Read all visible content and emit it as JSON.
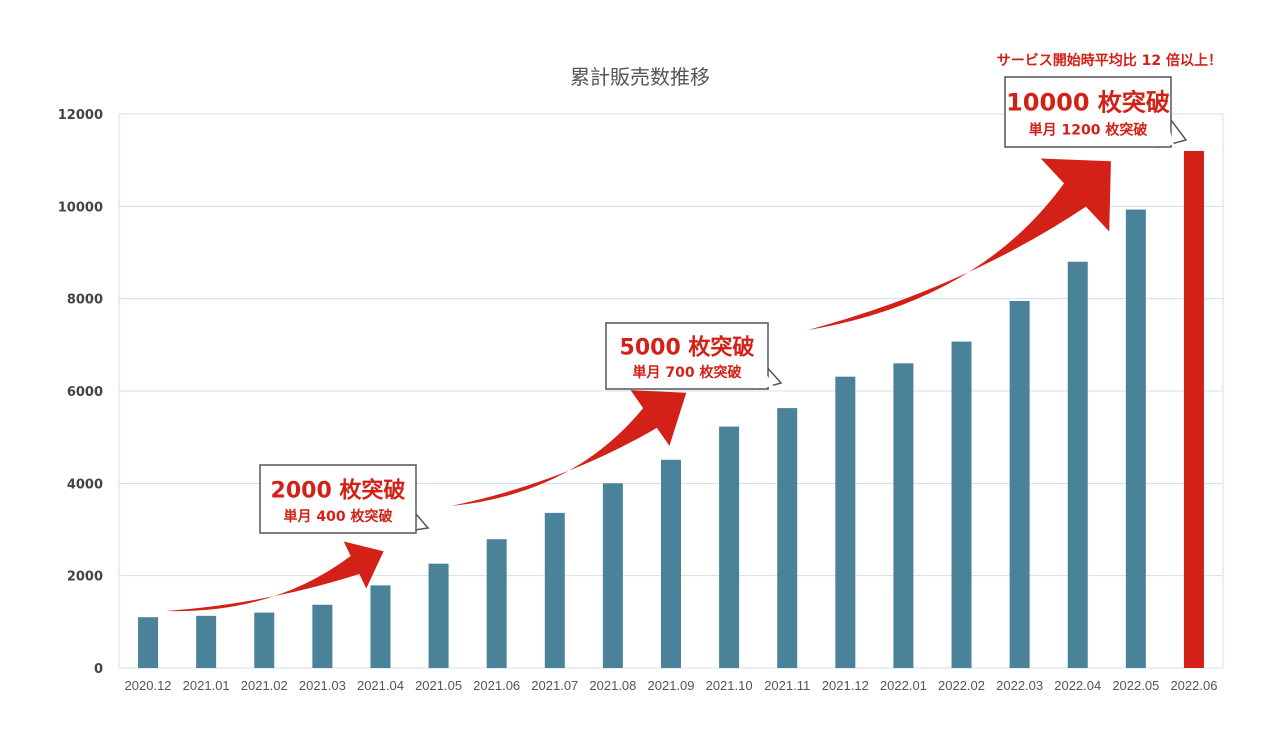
{
  "chart_data": {
    "type": "bar",
    "title": "累計販売数推移",
    "xlabel": "",
    "ylabel": "",
    "ylim": [
      0,
      12000
    ],
    "yticks": [
      0,
      2000,
      4000,
      6000,
      8000,
      10000,
      12000
    ],
    "grid": true,
    "categories": [
      "2020.12",
      "2021.01",
      "2021.02",
      "2021.03",
      "2021.04",
      "2021.05",
      "2021.06",
      "2021.07",
      "2021.08",
      "2021.09",
      "2021.10",
      "2021.11",
      "2021.12",
      "2022.01",
      "2022.02",
      "2022.03",
      "2022.04",
      "2022.05",
      "2022.06"
    ],
    "values": [
      1100,
      1130,
      1200,
      1370,
      1790,
      2260,
      2790,
      3360,
      4000,
      4510,
      5230,
      5630,
      6310,
      6600,
      7070,
      7950,
      8800,
      9930,
      11200
    ],
    "colors": {
      "bar": "#4a8299",
      "highlight_bar": "#d32117",
      "arrow": "#d32117",
      "grid": "#cfe0ea",
      "callout_border": "#555555"
    },
    "highlight_index": 18,
    "annotations": [
      {
        "main": "2000 枚突破",
        "sub": "単月 400 枚突破"
      },
      {
        "main": "5000 枚突破",
        "sub": "単月 700 枚突破"
      },
      {
        "main": "10000 枚突破",
        "sub": "単月 1200 枚突破"
      }
    ],
    "top_note": "サービス開始時平均比 12 倍以上！"
  }
}
